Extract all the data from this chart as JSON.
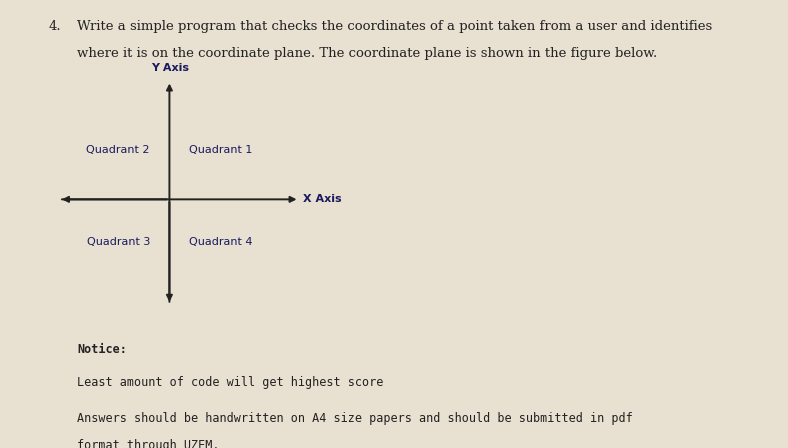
{
  "background_color": "#e8e0d0",
  "fig_width": 7.88,
  "fig_height": 4.48,
  "title_number": "4.",
  "title_line1": "Write a simple program that checks the coordinates of a point taken from a user and identifies",
  "title_line2": "where it is on the coordinate plane. The coordinate plane is shown in the figure below.",
  "title_fontsize": 9.5,
  "title_font": "serif",
  "y_axis_label": "Y Axis",
  "x_axis_label": "X Axis",
  "quadrant_labels": [
    "Quadrant 2",
    "Quadrant 1",
    "Quadrant 3",
    "Quadrant 4"
  ],
  "axis_color": "#222222",
  "label_color": "#1a1a5e",
  "text_color": "#222222",
  "notice_label": "Notice:",
  "notice_line1": "Least amount of code will get highest score",
  "notice_line2": "Answers should be handwritten on A4 size papers and should be submitted in pdf",
  "notice_line3": "format through UZEM.",
  "notice_font": "monospace",
  "notice_fontsize": 8.5,
  "axis_lw": 1.4,
  "ox": 0.215,
  "oy": 0.555,
  "xl": 0.075,
  "xr": 0.38,
  "yt": 0.82,
  "yb": 0.32
}
